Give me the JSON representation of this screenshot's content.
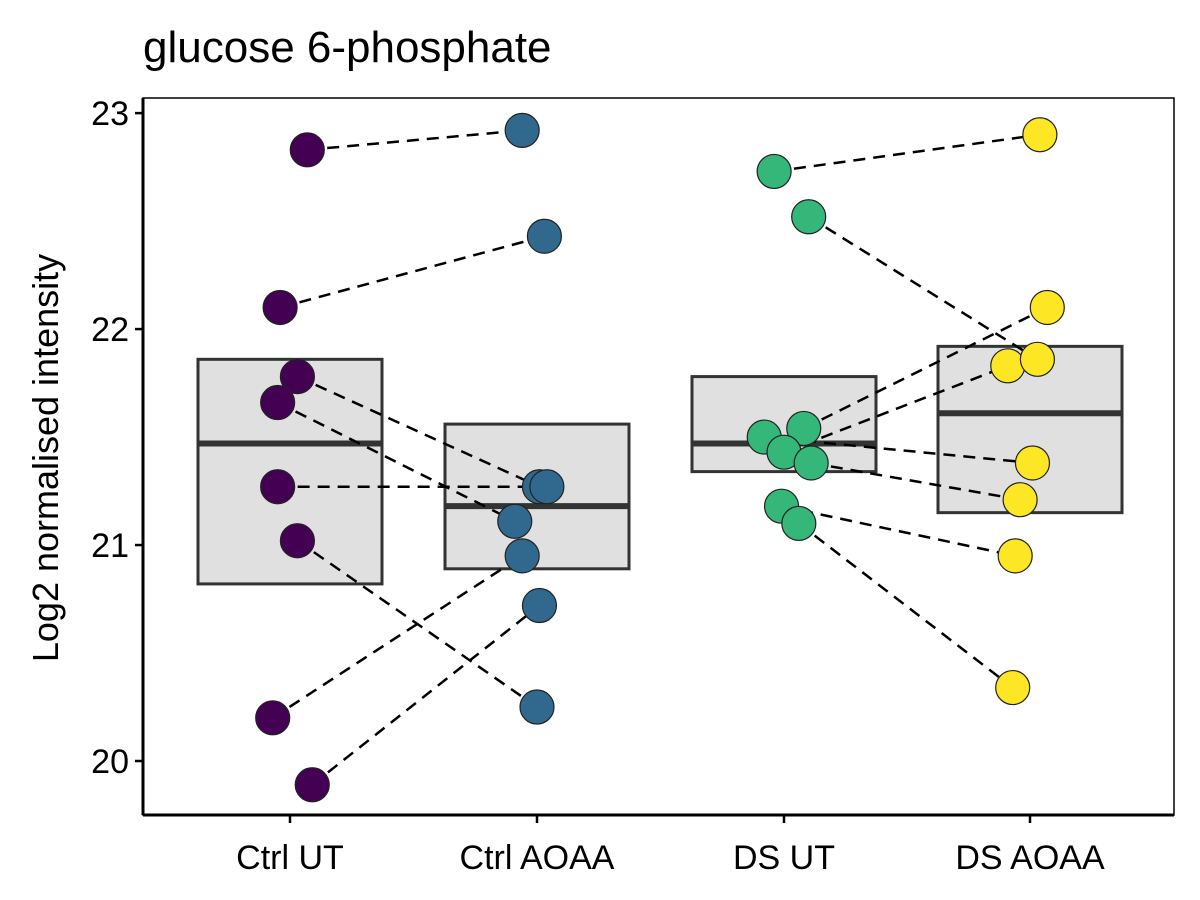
{
  "chart_data": {
    "type": "scatter",
    "title": "glucose 6-phosphate",
    "xlabel": "",
    "ylabel": "Log2 normalised intensity",
    "categories": [
      "Ctrl UT",
      "Ctrl AOAA",
      "DS UT",
      "DS AOAA"
    ],
    "ylim": [
      19.75,
      23.07
    ],
    "yticks": [
      20,
      21,
      22,
      23
    ],
    "grid": false,
    "legend": "none",
    "colors": {
      "Ctrl UT": "#440154",
      "Ctrl AOAA": "#31688e",
      "DS UT": "#35b779",
      "DS AOAA": "#fde725",
      "box_fill": "#e0e0e0",
      "box_stroke": "#333333"
    },
    "boxes": [
      {
        "category": "Ctrl UT",
        "lower": 20.82,
        "middle": 21.47,
        "upper": 21.86
      },
      {
        "category": "Ctrl AOAA",
        "lower": 20.89,
        "middle": 21.18,
        "upper": 21.56
      },
      {
        "category": "DS UT",
        "lower": 21.34,
        "middle": 21.47,
        "upper": 21.78
      },
      {
        "category": "DS AOAA",
        "lower": 21.15,
        "middle": 21.61,
        "upper": 21.92
      }
    ],
    "points": [
      {
        "category": "Ctrl UT",
        "jitter": 0.07,
        "y": 22.83
      },
      {
        "category": "Ctrl UT",
        "jitter": -0.04,
        "y": 22.1
      },
      {
        "category": "Ctrl UT",
        "jitter": 0.03,
        "y": 21.78
      },
      {
        "category": "Ctrl UT",
        "jitter": -0.05,
        "y": 21.66
      },
      {
        "category": "Ctrl UT",
        "jitter": -0.05,
        "y": 21.27
      },
      {
        "category": "Ctrl UT",
        "jitter": 0.03,
        "y": 21.02
      },
      {
        "category": "Ctrl UT",
        "jitter": -0.07,
        "y": 20.2
      },
      {
        "category": "Ctrl UT",
        "jitter": 0.09,
        "y": 19.89
      },
      {
        "category": "Ctrl AOAA",
        "jitter": -0.06,
        "y": 22.92
      },
      {
        "category": "Ctrl AOAA",
        "jitter": 0.03,
        "y": 22.43
      },
      {
        "category": "Ctrl AOAA",
        "jitter": 0.01,
        "y": 21.27
      },
      {
        "category": "Ctrl AOAA",
        "jitter": 0.04,
        "y": 21.27
      },
      {
        "category": "Ctrl AOAA",
        "jitter": -0.09,
        "y": 21.11
      },
      {
        "category": "Ctrl AOAA",
        "jitter": -0.06,
        "y": 20.95
      },
      {
        "category": "Ctrl AOAA",
        "jitter": 0.01,
        "y": 20.72
      },
      {
        "category": "Ctrl AOAA",
        "jitter": 0.0,
        "y": 20.25
      },
      {
        "category": "DS UT",
        "jitter": -0.04,
        "y": 22.73
      },
      {
        "category": "DS UT",
        "jitter": 0.1,
        "y": 22.52
      },
      {
        "category": "DS UT",
        "jitter": -0.08,
        "y": 21.5
      },
      {
        "category": "DS UT",
        "jitter": 0.08,
        "y": 21.54
      },
      {
        "category": "DS UT",
        "jitter": 0.0,
        "y": 21.43
      },
      {
        "category": "DS UT",
        "jitter": 0.11,
        "y": 21.38
      },
      {
        "category": "DS UT",
        "jitter": -0.01,
        "y": 21.18
      },
      {
        "category": "DS UT",
        "jitter": 0.06,
        "y": 21.1
      },
      {
        "category": "DS AOAA",
        "jitter": 0.04,
        "y": 22.9
      },
      {
        "category": "DS AOAA",
        "jitter": 0.07,
        "y": 22.1
      },
      {
        "category": "DS AOAA",
        "jitter": -0.09,
        "y": 21.83
      },
      {
        "category": "DS AOAA",
        "jitter": 0.03,
        "y": 21.86
      },
      {
        "category": "DS AOAA",
        "jitter": 0.01,
        "y": 21.38
      },
      {
        "category": "DS AOAA",
        "jitter": -0.04,
        "y": 21.21
      },
      {
        "category": "DS AOAA",
        "jitter": -0.06,
        "y": 20.95
      },
      {
        "category": "DS AOAA",
        "jitter": -0.07,
        "y": 20.34
      }
    ],
    "links": [
      {
        "from": {
          "category": "Ctrl UT",
          "jitter": 0.07,
          "y": 22.83
        },
        "to": {
          "category": "Ctrl AOAA",
          "jitter": -0.06,
          "y": 22.92
        }
      },
      {
        "from": {
          "category": "Ctrl UT",
          "jitter": -0.04,
          "y": 22.1
        },
        "to": {
          "category": "Ctrl AOAA",
          "jitter": 0.03,
          "y": 22.43
        }
      },
      {
        "from": {
          "category": "Ctrl UT",
          "jitter": 0.03,
          "y": 21.78
        },
        "to": {
          "category": "Ctrl AOAA",
          "jitter": 0.01,
          "y": 21.27
        }
      },
      {
        "from": {
          "category": "Ctrl UT",
          "jitter": -0.05,
          "y": 21.66
        },
        "to": {
          "category": "Ctrl AOAA",
          "jitter": -0.09,
          "y": 21.11
        }
      },
      {
        "from": {
          "category": "Ctrl UT",
          "jitter": -0.05,
          "y": 21.27
        },
        "to": {
          "category": "Ctrl AOAA",
          "jitter": 0.04,
          "y": 21.27
        }
      },
      {
        "from": {
          "category": "Ctrl UT",
          "jitter": 0.03,
          "y": 21.02
        },
        "to": {
          "category": "Ctrl AOAA",
          "jitter": 0.0,
          "y": 20.25
        }
      },
      {
        "from": {
          "category": "Ctrl UT",
          "jitter": -0.07,
          "y": 20.2
        },
        "to": {
          "category": "Ctrl AOAA",
          "jitter": -0.06,
          "y": 20.95
        }
      },
      {
        "from": {
          "category": "Ctrl UT",
          "jitter": 0.09,
          "y": 19.89
        },
        "to": {
          "category": "Ctrl AOAA",
          "jitter": 0.01,
          "y": 20.72
        }
      },
      {
        "from": {
          "category": "DS UT",
          "jitter": -0.04,
          "y": 22.73
        },
        "to": {
          "category": "DS AOAA",
          "jitter": 0.04,
          "y": 22.9
        }
      },
      {
        "from": {
          "category": "DS UT",
          "jitter": 0.1,
          "y": 22.52
        },
        "to": {
          "category": "DS AOAA",
          "jitter": 0.03,
          "y": 21.86
        }
      },
      {
        "from": {
          "category": "DS UT",
          "jitter": 0.08,
          "y": 21.54
        },
        "to": {
          "category": "DS AOAA",
          "jitter": 0.07,
          "y": 22.1
        }
      },
      {
        "from": {
          "category": "DS UT",
          "jitter": 0.0,
          "y": 21.43
        },
        "to": {
          "category": "DS AOAA",
          "jitter": -0.09,
          "y": 21.83
        }
      },
      {
        "from": {
          "category": "DS UT",
          "jitter": -0.08,
          "y": 21.5
        },
        "to": {
          "category": "DS AOAA",
          "jitter": 0.01,
          "y": 21.38
        }
      },
      {
        "from": {
          "category": "DS UT",
          "jitter": 0.11,
          "y": 21.38
        },
        "to": {
          "category": "DS AOAA",
          "jitter": -0.04,
          "y": 21.21
        }
      },
      {
        "from": {
          "category": "DS UT",
          "jitter": 0.06,
          "y": 21.1
        },
        "to": {
          "category": "DS AOAA",
          "jitter": -0.07,
          "y": 20.34
        }
      },
      {
        "from": {
          "category": "DS UT",
          "jitter": -0.01,
          "y": 21.18
        },
        "to": {
          "category": "DS AOAA",
          "jitter": -0.06,
          "y": 20.95
        }
      }
    ]
  }
}
